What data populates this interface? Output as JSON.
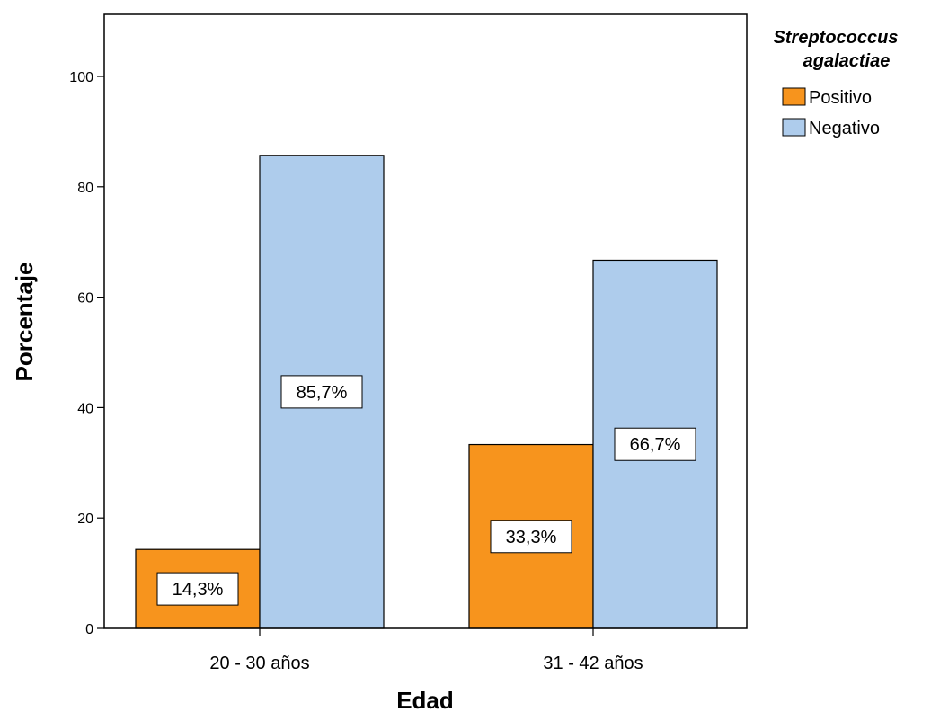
{
  "chart_data": {
    "type": "bar",
    "xlabel": "Edad",
    "ylabel": "Porcentaje",
    "categories": [
      "20 - 30 años",
      "31 - 42 años"
    ],
    "ylim": [
      0,
      100
    ],
    "yticks": [
      "0",
      "20",
      "40",
      "60",
      "80",
      "100"
    ],
    "grid": false,
    "legend": {
      "title_lines": [
        "Streptococcus",
        "agalactiae"
      ],
      "placement": "right-top"
    },
    "series": [
      {
        "name": "Positivo",
        "color": "#F7941D",
        "values": [
          14.3,
          33.3
        ],
        "labels": [
          "14,3%",
          "33,3%"
        ]
      },
      {
        "name": "Negativo",
        "color": "#AECCEC",
        "values": [
          85.7,
          66.7
        ],
        "labels": [
          "85,7%",
          "66,7%"
        ]
      }
    ]
  }
}
